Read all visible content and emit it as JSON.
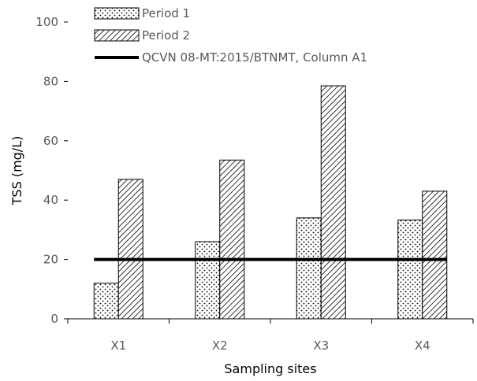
{
  "chart_data": {
    "type": "bar",
    "categories": [
      "X1",
      "X2",
      "X3",
      "X4"
    ],
    "series": [
      {
        "name": "Period 1",
        "values": [
          12,
          26,
          34,
          33.3
        ],
        "pattern": "dots"
      },
      {
        "name": "Period 2",
        "values": [
          47,
          53.5,
          78.5,
          43
        ],
        "pattern": "hatch"
      }
    ],
    "reference_line": {
      "name": "QCVN 08-MT:2015/BTNMT, Column A1",
      "value": 20,
      "color": "#000000"
    },
    "xlabel": "Sampling sites",
    "ylabel": "TSS (mg/L)",
    "ylim": [
      0,
      100
    ],
    "yticks": [
      0,
      20,
      40,
      60,
      80,
      100
    ],
    "grid": false,
    "legend_position": "top-left"
  }
}
